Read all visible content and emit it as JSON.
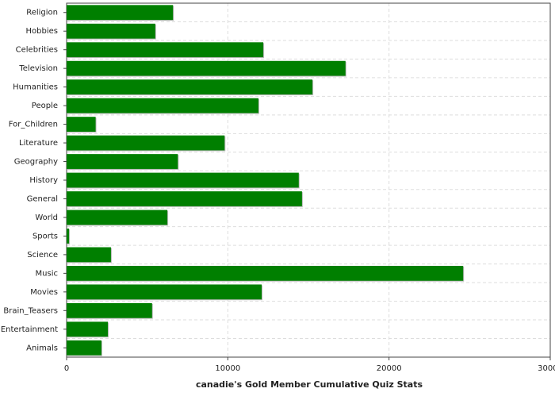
{
  "chart_data": {
    "type": "hbar",
    "title": "canadie's Gold Member Cumulative Quiz Stats",
    "categories": [
      "Religion",
      "Hobbies",
      "Celebrities",
      "Television",
      "Humanities",
      "People",
      "For_Children",
      "Literature",
      "Geography",
      "History",
      "General",
      "World",
      "Sports",
      "Science",
      "Music",
      "Movies",
      "Brain_Teasers",
      "Entertainment",
      "Animals"
    ],
    "values": [
      6600,
      5500,
      12200,
      17300,
      15250,
      11900,
      1800,
      9800,
      6900,
      14400,
      14600,
      6250,
      150,
      2750,
      24600,
      12100,
      5300,
      2560,
      2160
    ],
    "color": "#007f00",
    "xlim": [
      0,
      30000
    ],
    "xticks": [
      0,
      10000,
      20000,
      30000
    ],
    "grid": true
  }
}
